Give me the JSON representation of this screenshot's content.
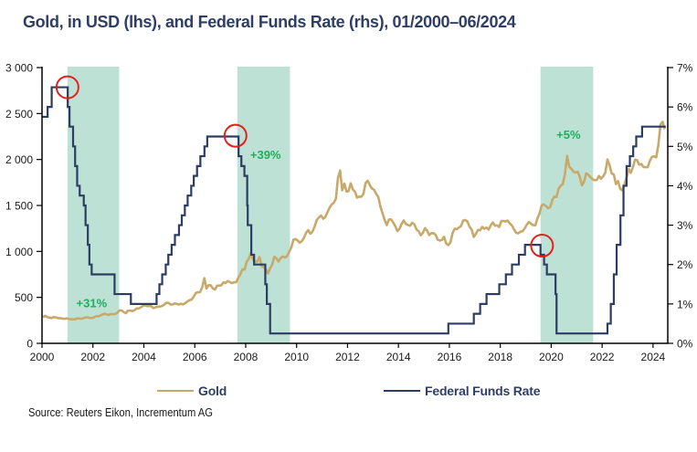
{
  "title": "Gold, in USD (lhs), and Federal Funds Rate (rhs), 01/2000–06/2024",
  "legend": {
    "gold_label": "Gold",
    "ffr_label": "Federal Funds Rate"
  },
  "source": "Source: Reuters Eikon, Incrementum AG",
  "chart_data": {
    "type": "line",
    "title": "Gold, in USD (lhs), and Federal Funds Rate (rhs), 01/2000–06/2024",
    "xlabel": "",
    "ylabel_left": "Gold, in USD",
    "ylabel_right": "Federal Funds Rate",
    "x_range": [
      2000,
      2024.55
    ],
    "x_ticks": [
      "2000",
      "2002",
      "2004",
      "2006",
      "2008",
      "2010",
      "2012",
      "2014",
      "2016",
      "2018",
      "2020",
      "2022",
      "2024"
    ],
    "y_left": {
      "range": [
        0,
        3000
      ],
      "ticks": [
        0,
        500,
        1000,
        1500,
        2000,
        2500,
        3000
      ],
      "tick_labels": [
        "0",
        "500",
        "1 000",
        "1 500",
        "2 000",
        "2 500",
        "3 000"
      ]
    },
    "y_right": {
      "range": [
        0,
        7
      ],
      "ticks": [
        0,
        1,
        2,
        3,
        4,
        5,
        6,
        7
      ],
      "tick_labels": [
        "0%",
        "1%",
        "2%",
        "3%",
        "4%",
        "5%",
        "6%",
        "7%"
      ]
    },
    "grid": false,
    "legend_position": "bottom",
    "colors": {
      "gold": "#c8a96a",
      "ffr": "#2c3d63",
      "shade": "#bde2d5",
      "marker": "#e3201b",
      "annotation": "#1fae5c",
      "axis": "#000000"
    },
    "series": [
      {
        "name": "Gold",
        "axis": "left",
        "start": "2000-01",
        "frequency": "monthly",
        "values": [
          284,
          300,
          286,
          280,
          275,
          286,
          282,
          275,
          274,
          270,
          266,
          272,
          266,
          262,
          263,
          260,
          272,
          270,
          268,
          273,
          283,
          283,
          276,
          276,
          282,
          296,
          294,
          303,
          314,
          322,
          314,
          310,
          319,
          317,
          319,
          333,
          357,
          359,
          340,
          328,
          355,
          356,
          351,
          360,
          379,
          379,
          390,
          407,
          414,
          405,
          406,
          404,
          384,
          392,
          398,
          400,
          406,
          420,
          439,
          442,
          424,
          423,
          434,
          429,
          422,
          430,
          424,
          437,
          456,
          470,
          476,
          509,
          549,
          555,
          557,
          610,
          710,
          596,
          633,
          632,
          598,
          585,
          627,
          629,
          631,
          664,
          655,
          679,
          667,
          655,
          665,
          665,
          712,
          754,
          806,
          803,
          889,
          922,
          985,
          909,
          888,
          889,
          939,
          839,
          829,
          806,
          760,
          816,
          858,
          943,
          924,
          890,
          928,
          945,
          934,
          949,
          996,
          1043,
          1127,
          1134,
          1118,
          1095,
          1113,
          1148,
          1205,
          1232,
          1193,
          1215,
          1271,
          1342,
          1370,
          1391,
          1356,
          1372,
          1424,
          1473,
          1510,
          1528,
          1572,
          1800,
          1880,
          1665,
          1739,
          1652,
          1656,
          1742,
          1674,
          1650,
          1585,
          1596,
          1594,
          1626,
          1744,
          1770,
          1722,
          1684,
          1671,
          1627,
          1593,
          1487,
          1414,
          1343,
          1286,
          1347,
          1349,
          1316,
          1275,
          1222,
          1244,
          1300,
          1336,
          1299,
          1287,
          1279,
          1311,
          1296,
          1239,
          1222,
          1176,
          1201,
          1251,
          1227,
          1178,
          1198,
          1199,
          1181,
          1128,
          1118,
          1125,
          1159,
          1086,
          1068,
          1097,
          1199,
          1246,
          1242,
          1260,
          1276,
          1337,
          1341,
          1326,
          1267,
          1238,
          1157,
          1192,
          1234,
          1231,
          1267,
          1246,
          1260,
          1237,
          1283,
          1315,
          1280,
          1283,
          1265,
          1331,
          1331,
          1325,
          1335,
          1304,
          1281,
          1238,
          1201,
          1198,
          1215,
          1220,
          1250,
          1291,
          1320,
          1300,
          1285,
          1283,
          1359,
          1413,
          1500,
          1510,
          1495,
          1471,
          1480,
          1560,
          1597,
          1592,
          1683,
          1716,
          1732,
          1846,
          2040,
          1921,
          1900,
          1866,
          1858,
          1867,
          1808,
          1718,
          1760,
          1850,
          1834,
          1807,
          1785,
          1775,
          1777,
          1821,
          1790,
          1817,
          1856,
          2000,
          1937,
          1848,
          1837,
          1733,
          1765,
          1681,
          1665,
          1726,
          1798,
          1898,
          1855,
          1913,
          1999,
          1992,
          1943,
          1951,
          1918,
          1916,
          1916,
          1986,
          2029,
          2034,
          2024,
          2158,
          2380,
          2410,
          2330
        ]
      },
      {
        "name": "Federal Funds Rate",
        "axis": "right",
        "unit": "%",
        "end": 2024.5,
        "steps": [
          [
            2000.0,
            5.75
          ],
          [
            2000.22,
            6.0
          ],
          [
            2000.38,
            6.5
          ],
          [
            2001.01,
            6.0
          ],
          [
            2001.08,
            5.5
          ],
          [
            2001.22,
            5.0
          ],
          [
            2001.3,
            4.5
          ],
          [
            2001.38,
            4.0
          ],
          [
            2001.48,
            3.75
          ],
          [
            2001.64,
            3.5
          ],
          [
            2001.71,
            3.0
          ],
          [
            2001.8,
            2.5
          ],
          [
            2001.86,
            2.0
          ],
          [
            2001.95,
            1.75
          ],
          [
            2002.85,
            1.25
          ],
          [
            2003.49,
            1.0
          ],
          [
            2004.5,
            1.25
          ],
          [
            2004.61,
            1.5
          ],
          [
            2004.72,
            1.75
          ],
          [
            2004.86,
            2.0
          ],
          [
            2004.96,
            2.25
          ],
          [
            2005.09,
            2.5
          ],
          [
            2005.22,
            2.75
          ],
          [
            2005.38,
            3.0
          ],
          [
            2005.49,
            3.25
          ],
          [
            2005.61,
            3.5
          ],
          [
            2005.72,
            3.75
          ],
          [
            2005.86,
            4.0
          ],
          [
            2005.96,
            4.25
          ],
          [
            2006.09,
            4.5
          ],
          [
            2006.22,
            4.75
          ],
          [
            2006.38,
            5.0
          ],
          [
            2006.49,
            5.25
          ],
          [
            2007.72,
            4.75
          ],
          [
            2007.83,
            4.5
          ],
          [
            2007.95,
            4.25
          ],
          [
            2008.06,
            3.5
          ],
          [
            2008.08,
            3.0
          ],
          [
            2008.22,
            2.25
          ],
          [
            2008.33,
            2.0
          ],
          [
            2008.77,
            1.5
          ],
          [
            2008.83,
            1.0
          ],
          [
            2008.96,
            0.25
          ],
          [
            2015.96,
            0.5
          ],
          [
            2016.96,
            0.75
          ],
          [
            2017.21,
            1.0
          ],
          [
            2017.46,
            1.25
          ],
          [
            2017.96,
            1.5
          ],
          [
            2018.22,
            1.75
          ],
          [
            2018.46,
            2.0
          ],
          [
            2018.73,
            2.25
          ],
          [
            2018.97,
            2.5
          ],
          [
            2019.58,
            2.25
          ],
          [
            2019.72,
            2.0
          ],
          [
            2019.83,
            1.75
          ],
          [
            2020.17,
            1.25
          ],
          [
            2020.21,
            0.25
          ],
          [
            2022.21,
            0.5
          ],
          [
            2022.34,
            1.0
          ],
          [
            2022.46,
            1.75
          ],
          [
            2022.57,
            2.5
          ],
          [
            2022.72,
            3.25
          ],
          [
            2022.84,
            4.0
          ],
          [
            2022.96,
            4.5
          ],
          [
            2023.09,
            4.75
          ],
          [
            2023.22,
            5.0
          ],
          [
            2023.34,
            5.25
          ],
          [
            2023.57,
            5.5
          ]
        ]
      }
    ],
    "shaded_periods": [
      {
        "start": 2001.0,
        "end": 2003.03
      },
      {
        "start": 2007.67,
        "end": 2009.74
      },
      {
        "start": 2019.58,
        "end": 2021.65
      }
    ],
    "markers": [
      {
        "shape": "circle",
        "x": 2001.0,
        "y": 6.5,
        "axis": "right"
      },
      {
        "shape": "circle",
        "x": 2007.6,
        "y": 5.27,
        "axis": "right"
      },
      {
        "shape": "circle",
        "x": 2019.64,
        "y": 2.48,
        "axis": "right"
      }
    ],
    "annotations": [
      {
        "text": "+31%",
        "x": 2001.95,
        "y": 440,
        "axis": "left"
      },
      {
        "text": "+39%",
        "x": 2008.78,
        "y": 2056,
        "axis": "left"
      },
      {
        "text": "+5%",
        "x": 2020.68,
        "y": 2277,
        "axis": "left"
      }
    ]
  }
}
